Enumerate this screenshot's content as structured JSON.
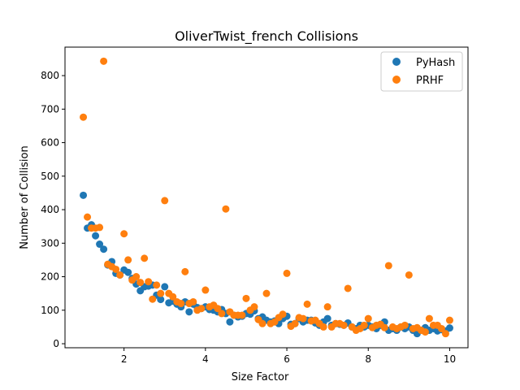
{
  "chart_data": {
    "type": "scatter",
    "title": "OliverTwist_french Collisions",
    "xlabel": "Size Factor",
    "ylabel": "Number of Collision",
    "xlim": [
      0.55,
      10.45
    ],
    "ylim": [
      -12,
      885
    ],
    "xticks": [
      2,
      4,
      6,
      8,
      10
    ],
    "yticks": [
      0,
      100,
      200,
      300,
      400,
      500,
      600,
      700,
      800
    ],
    "grid": false,
    "legend_position": "top-right",
    "x": [
      1.0,
      1.1,
      1.2,
      1.3,
      1.4,
      1.5,
      1.6,
      1.7,
      1.8,
      1.9,
      2.0,
      2.1,
      2.2,
      2.3,
      2.4,
      2.5,
      2.6,
      2.7,
      2.8,
      2.9,
      3.0,
      3.1,
      3.2,
      3.3,
      3.4,
      3.5,
      3.6,
      3.7,
      3.8,
      3.9,
      4.0,
      4.1,
      4.2,
      4.3,
      4.4,
      4.5,
      4.6,
      4.7,
      4.8,
      4.9,
      5.0,
      5.1,
      5.2,
      5.3,
      5.4,
      5.5,
      5.6,
      5.7,
      5.8,
      5.9,
      6.0,
      6.1,
      6.2,
      6.3,
      6.4,
      6.5,
      6.6,
      6.7,
      6.8,
      6.9,
      7.0,
      7.1,
      7.2,
      7.3,
      7.4,
      7.5,
      7.6,
      7.7,
      7.8,
      7.9,
      8.0,
      8.1,
      8.2,
      8.3,
      8.4,
      8.5,
      8.6,
      8.7,
      8.8,
      8.9,
      9.0,
      9.1,
      9.2,
      9.3,
      9.4,
      9.5,
      9.6,
      9.7,
      9.8,
      9.9,
      10.0
    ],
    "series": [
      {
        "name": "PyHash",
        "color": "#1f77b4",
        "values": [
          443,
          345,
          355,
          322,
          297,
          282,
          235,
          245,
          210,
          205,
          220,
          213,
          195,
          178,
          158,
          170,
          172,
          175,
          145,
          132,
          170,
          122,
          127,
          118,
          110,
          125,
          95,
          118,
          108,
          105,
          110,
          102,
          100,
          95,
          102,
          90,
          65,
          85,
          80,
          82,
          90,
          88,
          98,
          75,
          80,
          70,
          65,
          68,
          60,
          75,
          82,
          58,
          60,
          75,
          65,
          70,
          70,
          62,
          55,
          65,
          75,
          55,
          60,
          58,
          55,
          62,
          50,
          45,
          55,
          50,
          55,
          50,
          45,
          55,
          65,
          40,
          45,
          40,
          50,
          45,
          50,
          40,
          30,
          40,
          48,
          40,
          45,
          38,
          42,
          38,
          47
        ]
      },
      {
        "name": "PRHF",
        "color": "#ff7f0e",
        "values": [
          676,
          378,
          345,
          345,
          347,
          843,
          237,
          230,
          222,
          205,
          328,
          250,
          190,
          200,
          183,
          255,
          185,
          133,
          175,
          150,
          427,
          150,
          140,
          125,
          120,
          215,
          120,
          125,
          100,
          105,
          160,
          110,
          115,
          105,
          90,
          402,
          95,
          85,
          85,
          85,
          135,
          100,
          110,
          72,
          60,
          150,
          60,
          65,
          78,
          88,
          210,
          52,
          60,
          78,
          75,
          118,
          68,
          70,
          60,
          50,
          110,
          50,
          60,
          60,
          55,
          165,
          50,
          40,
          45,
          55,
          75,
          48,
          55,
          58,
          48,
          233,
          50,
          45,
          50,
          55,
          205,
          45,
          48,
          40,
          35,
          75,
          55,
          55,
          45,
          30,
          70
        ]
      }
    ]
  }
}
